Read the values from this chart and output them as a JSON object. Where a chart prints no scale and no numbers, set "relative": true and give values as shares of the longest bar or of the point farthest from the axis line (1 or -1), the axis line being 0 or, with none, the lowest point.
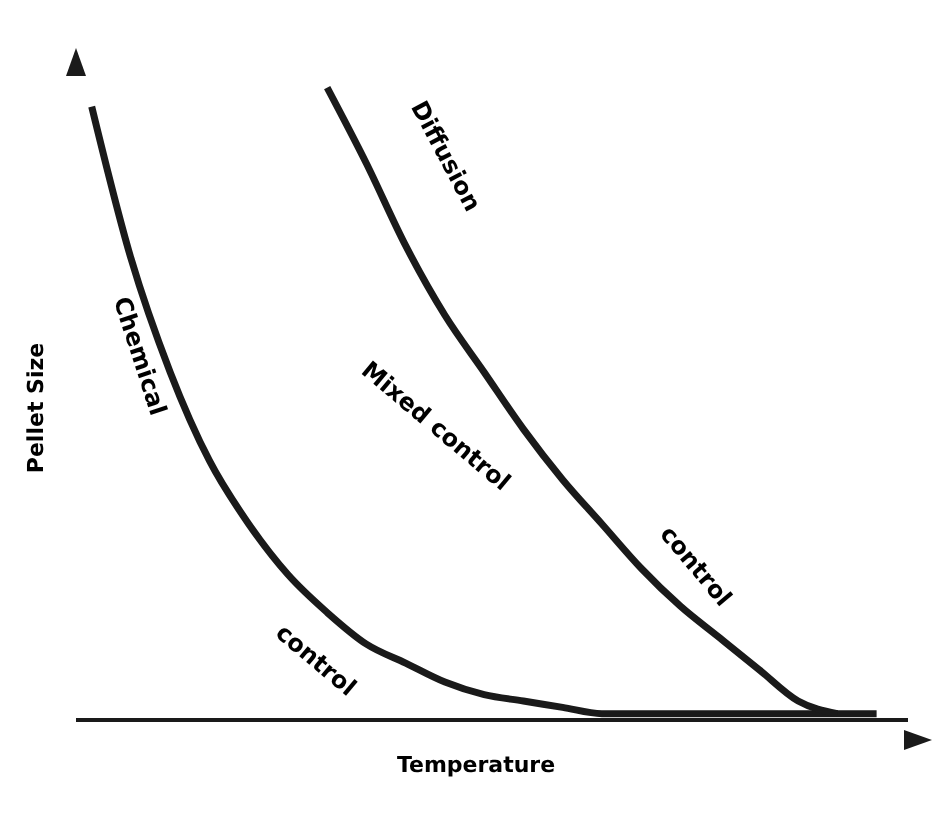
{
  "chart_data": {
    "type": "line",
    "relative": true,
    "xlabel": "Temperature",
    "ylabel": "Pellet Size",
    "categories": [
      null,
      null,
      null,
      null,
      null,
      null,
      null,
      null,
      null,
      null,
      null,
      null,
      null,
      null,
      null,
      null,
      null,
      null,
      null,
      null,
      null
    ],
    "series": [
      {
        "color": "#1a1a1a",
        "values": [
          0.97,
          0.73,
          0.55,
          0.41,
          0.31,
          0.23,
          0.17,
          0.12,
          0.09,
          0.06,
          0.04,
          0.03,
          0.02,
          0.01,
          0.01,
          0.01,
          0.01,
          0.01,
          0.01,
          0.01,
          0.01
        ]
      },
      {
        "color": "#1a1a1a",
        "values": [
          null,
          null,
          null,
          null,
          null,
          null,
          1.0,
          0.88,
          0.75,
          0.64,
          0.55,
          0.46,
          0.38,
          0.31,
          0.24,
          0.18,
          0.13,
          0.08,
          0.03,
          0.01,
          null
        ]
      }
    ],
    "annotations": [
      "Chemical",
      "control",
      "Mixed control",
      "Diffusion",
      "control"
    ],
    "grid": false,
    "legend": false,
    "marker": "none",
    "line_style": "solid"
  }
}
